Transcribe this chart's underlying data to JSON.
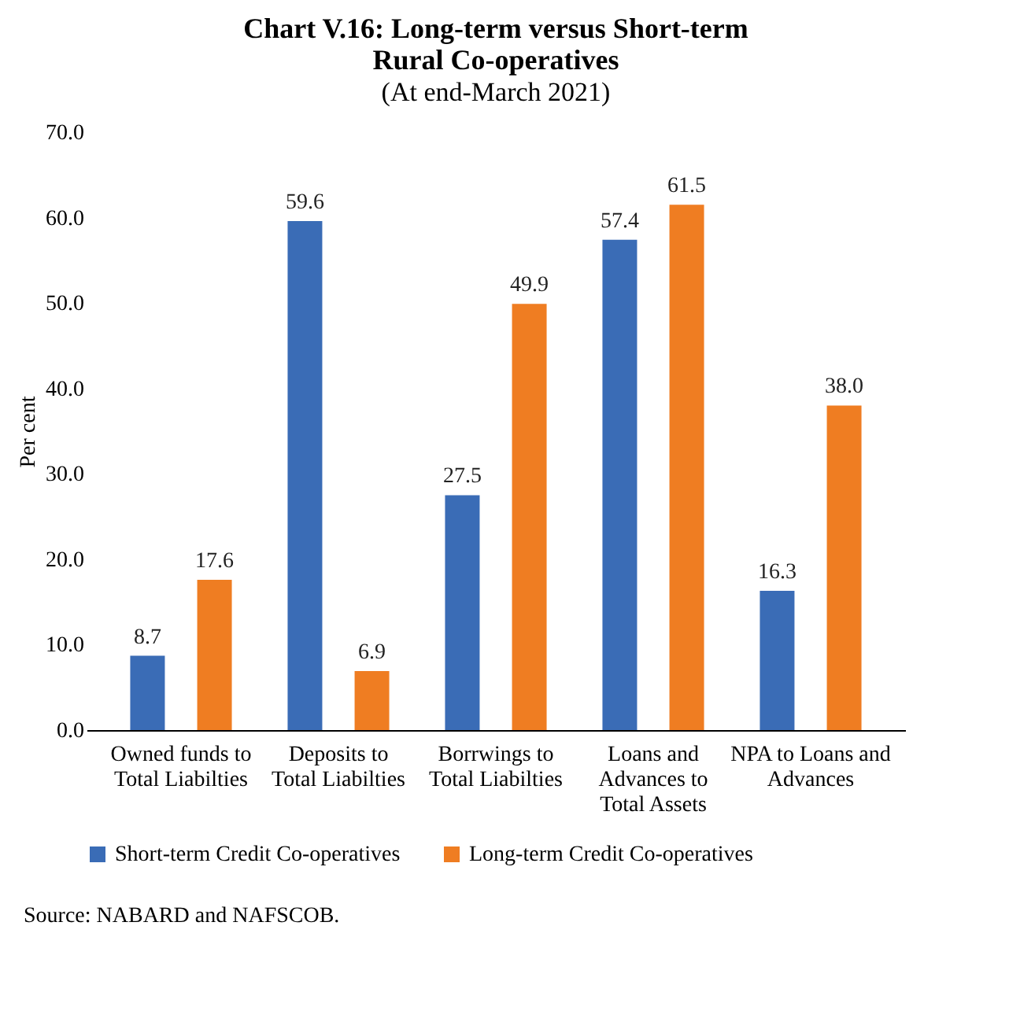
{
  "chart_data": {
    "type": "bar",
    "title": "Chart V.16: Long-term versus Short-term Rural Co-operatives",
    "subtitle": "(At end-March 2021)",
    "ylabel": "Per cent",
    "categories": [
      "Owned funds to Total Liabilties",
      "Deposits to Total Liabilties",
      "Borrwings to Total Liabilties",
      "Loans and Advances to Total Assets",
      "NPA to Loans and Advances"
    ],
    "series": [
      {
        "name": "Short-term Credit Co-operatives",
        "color": "#3a6cb6",
        "values": [
          8.7,
          59.6,
          27.5,
          57.4,
          16.3
        ],
        "value_labels": [
          "8.7",
          "59.6",
          "27.5",
          "57.4",
          "16.3"
        ]
      },
      {
        "name": "Long-term Credit Co-operatives",
        "color": "#ef7d22",
        "values": [
          17.6,
          6.9,
          49.9,
          61.5,
          38.0
        ],
        "value_labels": [
          "17.6",
          "6.9",
          "49.9",
          "61.5",
          "38.0"
        ]
      }
    ],
    "ylim": [
      0,
      70
    ],
    "yticks": [
      {
        "value": 0,
        "label": "0.0"
      },
      {
        "value": 10,
        "label": "10.0"
      },
      {
        "value": 20,
        "label": "20.0"
      },
      {
        "value": 30,
        "label": "30.0"
      },
      {
        "value": 40,
        "label": "40.0"
      },
      {
        "value": 50,
        "label": "50.0"
      },
      {
        "value": 60,
        "label": "60.0"
      },
      {
        "value": 70,
        "label": "70.0"
      }
    ],
    "grid": false,
    "legend": "bottom",
    "annotations": [
      "Source: NABARD and NAFSCOB."
    ]
  }
}
